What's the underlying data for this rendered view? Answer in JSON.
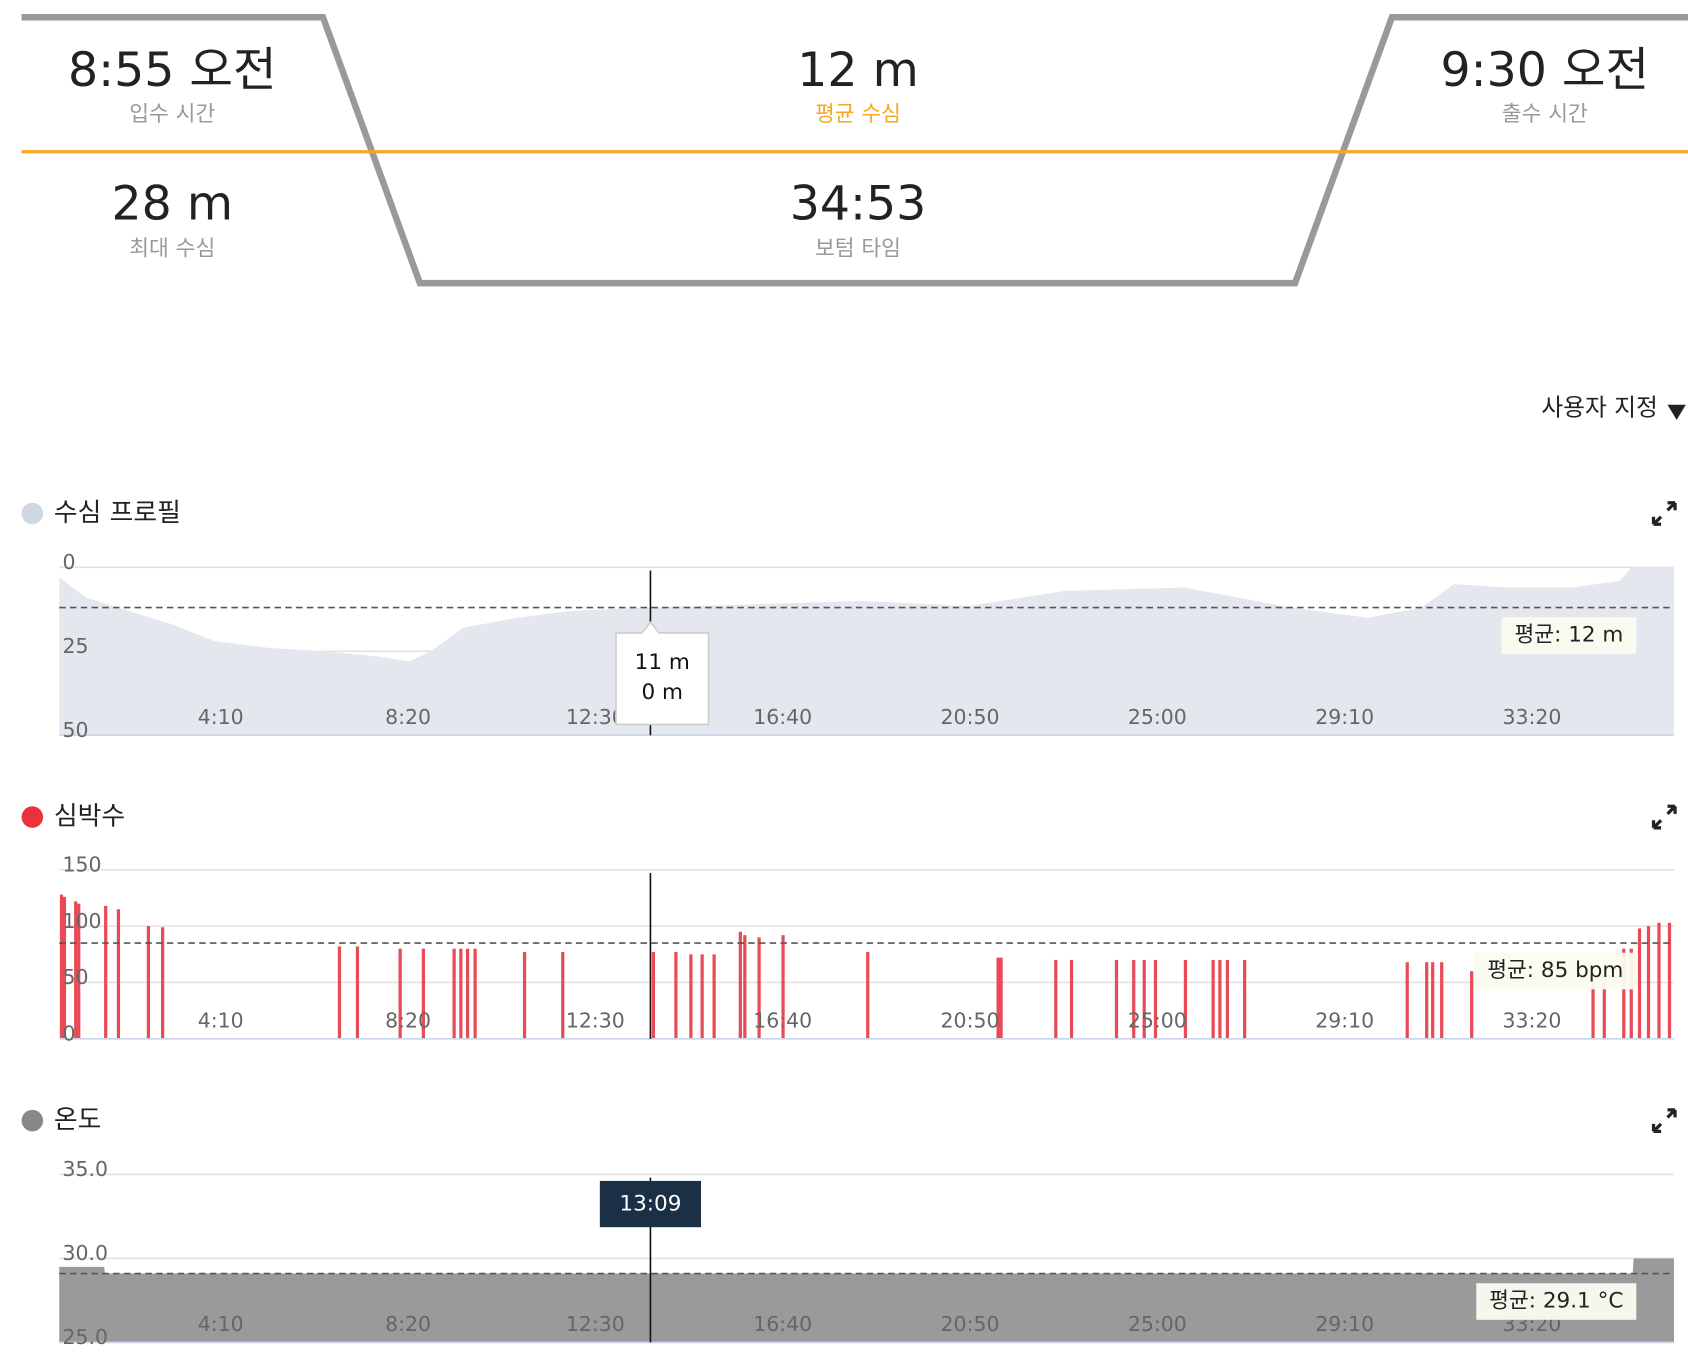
{
  "summary": {
    "entry_time": {
      "value": "8:55 오전",
      "label": "입수 시간"
    },
    "avg_depth": {
      "value": "12 m",
      "label": "평균 수심"
    },
    "exit_time": {
      "value": "9:30 오전",
      "label": "출수 시간"
    },
    "max_depth": {
      "value": "28 m",
      "label": "최대 수심"
    },
    "bottom_time": {
      "value": "34:53",
      "label": "보텀 타임"
    }
  },
  "menu": "사용자 지정",
  "time_axis": {
    "xlim": [
      0,
      2155
    ],
    "xticks": [
      {
        "value": 250,
        "label": "4:10"
      },
      {
        "value": 500,
        "label": "8:20"
      },
      {
        "value": 750,
        "label": "12:30"
      },
      {
        "value": 1000,
        "label": "16:40"
      },
      {
        "value": 1250,
        "label": "20:50"
      },
      {
        "value": 1500,
        "label": "25:00"
      },
      {
        "value": 1750,
        "label": "29:10"
      },
      {
        "value": 2000,
        "label": "33:20"
      }
    ],
    "cursor": {
      "value": 789,
      "label": "13:09"
    }
  },
  "chart_data": [
    {
      "type": "area",
      "title": "수심 프로필",
      "color": "#e4e8ee",
      "dot_color": "#cfd8e0",
      "y_inverted": true,
      "ylim": [
        0,
        50
      ],
      "yticks": [
        0,
        25,
        50
      ],
      "x": [
        0,
        36,
        93,
        151,
        208,
        280,
        352,
        424,
        467,
        496,
        539,
        611,
        682,
        783,
        927,
        1070,
        1214,
        1343,
        1501,
        1573,
        1645,
        1746,
        1818,
        1861,
        1932,
        2019,
        2083,
        2098,
        2155
      ],
      "values": [
        3,
        9,
        13,
        17,
        22,
        24,
        25,
        26.5,
        28,
        25,
        18,
        15,
        13,
        12,
        11,
        10,
        11.5,
        7,
        6,
        9,
        12,
        15,
        12,
        5,
        6,
        6,
        4,
        0,
        0
      ],
      "avg": 12,
      "avg_label": "평균: 12 m",
      "tooltip": [
        "11 m",
        "0 m"
      ]
    },
    {
      "type": "bar",
      "title": "심박수",
      "color": "#e84b55",
      "dot_color": "#e8323c",
      "ylim": [
        0,
        150
      ],
      "yticks": [
        0,
        50,
        100,
        150
      ],
      "x": [
        3,
        7,
        22,
        26,
        62,
        79,
        119,
        138,
        374,
        398,
        455,
        486,
        527,
        536,
        545,
        555,
        621,
        672,
        793,
        823,
        843,
        858,
        874,
        909,
        915,
        934,
        966,
        1079,
        1253,
        1257,
        1330,
        1351,
        1411,
        1434,
        1448,
        1463,
        1503,
        1540,
        1549,
        1559,
        1582,
        1799,
        1825,
        1833,
        1845,
        1885,
        2047,
        2062,
        2088,
        2098,
        2109,
        2121,
        2135,
        2149
      ],
      "values": [
        128,
        126,
        122,
        120,
        118,
        115,
        100,
        99,
        82,
        82,
        80,
        80,
        80,
        80,
        80,
        80,
        77,
        77,
        77,
        77,
        75,
        75,
        75,
        95,
        92,
        90,
        92,
        77,
        72,
        72,
        70,
        70,
        70,
        70,
        70,
        70,
        70,
        70,
        70,
        70,
        70,
        68,
        68,
        68,
        68,
        60,
        50,
        50,
        80,
        80,
        98,
        100,
        103,
        103
      ],
      "avg": 85,
      "avg_label": "평균: 85 bpm"
    },
    {
      "type": "area",
      "title": "온도",
      "color": "#9a9a9a",
      "dot_color": "#888888",
      "y_inverted": false,
      "ylim": [
        25,
        35
      ],
      "yticks": [
        {
          "value": 25,
          "label": "25.0"
        },
        {
          "value": 30,
          "label": "30.0"
        },
        {
          "value": 35,
          "label": "35.0"
        }
      ],
      "x": [
        0,
        60,
        61,
        2100,
        2101,
        2155
      ],
      "values": [
        29.5,
        29.5,
        29.1,
        29.1,
        30,
        30
      ],
      "avg": 29.1,
      "avg_label": "평균: 29.1 °C"
    }
  ]
}
